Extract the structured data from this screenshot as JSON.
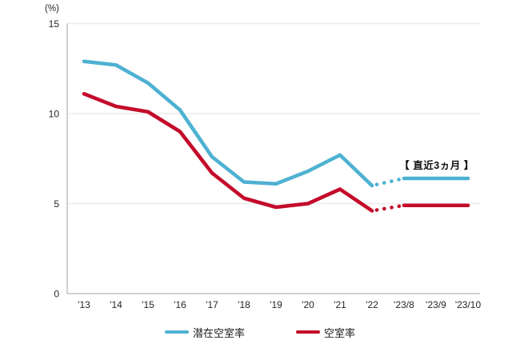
{
  "chart_data": {
    "type": "line",
    "unit_label": "(%)",
    "x_labels": [
      "'13",
      "'14",
      "'15",
      "'16",
      "'17",
      "'18",
      "'19",
      "'20",
      "'21",
      "'22",
      "'23/8",
      "'23/9",
      "'23/10"
    ],
    "y_ticks": [
      0,
      5,
      10,
      15
    ],
    "ylim": [
      0,
      15
    ],
    "grid": "horizontal",
    "legend_position": "bottom",
    "annotation": "【 直近3ヵ月 】",
    "dotted_segment": {
      "from_index": 9,
      "to_index": 10
    },
    "series": [
      {
        "name": "潜在空室率",
        "color": "#4EB1D2",
        "values": [
          12.9,
          12.7,
          11.7,
          10.2,
          7.6,
          6.2,
          6.1,
          6.8,
          7.7,
          6.0,
          6.4,
          6.4,
          6.4
        ]
      },
      {
        "name": "空室率",
        "color": "#C40B2A",
        "values": [
          11.1,
          10.4,
          10.1,
          9.0,
          6.7,
          5.3,
          4.8,
          5.0,
          5.8,
          4.6,
          4.9,
          4.9,
          4.9
        ]
      }
    ],
    "colors": {
      "grid_line": "#EBEBEB",
      "axis_line": "#C4C4C4",
      "label_text": "#262626"
    }
  }
}
